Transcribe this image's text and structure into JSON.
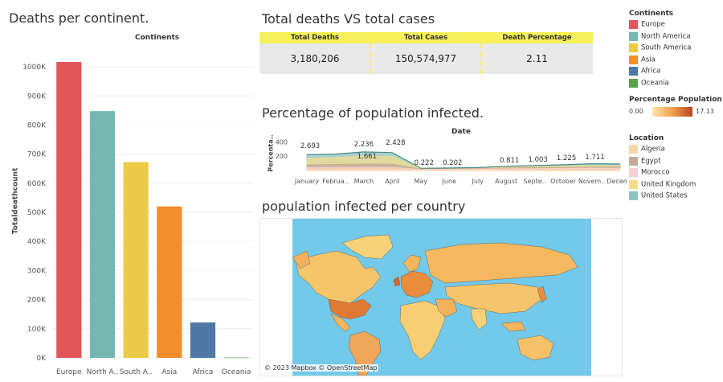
{
  "deaths_chart": {
    "title": "Deaths per continent.",
    "header": "Continents",
    "ylabel": "Totaldeathcount"
  },
  "kpi": {
    "title": "Total deaths VS total cases",
    "columns": [
      {
        "header": "Total Deaths",
        "value": "3,180,206"
      },
      {
        "header": "Total Cases",
        "value": "150,574,977"
      },
      {
        "header": "Death Percentage",
        "value": "2.11"
      }
    ]
  },
  "pct_chart": {
    "title": "Percentage of population infected.",
    "header": "Date",
    "ylabel": "Percenta.."
  },
  "map": {
    "title": "population infected per country",
    "attribution": "© 2023 Mapbox © OpenStreetMap"
  },
  "legends": {
    "continents_title": "Continents",
    "continents": [
      {
        "label": "Europe",
        "color": "#e15759"
      },
      {
        "label": "North America",
        "color": "#76b7b2"
      },
      {
        "label": "South America",
        "color": "#edc948"
      },
      {
        "label": "Asia",
        "color": "#f28e2b"
      },
      {
        "label": "Africa",
        "color": "#4e79a7"
      },
      {
        "label": "Oceania",
        "color": "#59a14f"
      }
    ],
    "pct_title": "Percentage Population In..",
    "pct_min": "0.00",
    "pct_max": "17.13",
    "location_title": "Location",
    "locations": [
      {
        "label": "Algeria",
        "color": "#f9d7a8"
      },
      {
        "label": "Egypt",
        "color": "#c1ab98"
      },
      {
        "label": "Morocco",
        "color": "#f7cfd6"
      },
      {
        "label": "United Kingdom",
        "color": "#f3dc8c"
      },
      {
        "label": "United States",
        "color": "#8fc3c1"
      }
    ]
  },
  "chart_data": [
    {
      "type": "bar",
      "title": "Deaths per continent.",
      "xlabel": "Continents",
      "ylabel": "Totaldeathcount",
      "categories": [
        "Europe",
        "North A..",
        "South A..",
        "Asia",
        "Africa",
        "Oceania"
      ],
      "values": [
        1016750,
        847942,
        672415,
        520286,
        121784,
        1046
      ],
      "colors": [
        "#e15759",
        "#76b7b2",
        "#edc948",
        "#f28e2b",
        "#4e79a7",
        "#59a14f"
      ],
      "ylim": [
        0,
        1050000
      ],
      "yticks": [
        0,
        100000,
        200000,
        300000,
        400000,
        500000,
        600000,
        700000,
        800000,
        900000,
        1000000
      ],
      "ytick_labels": [
        "0K",
        "100K",
        "200K",
        "300K",
        "400K",
        "500K",
        "600K",
        "700K",
        "800K",
        "900K",
        "1000K"
      ],
      "grid": true
    },
    {
      "type": "area",
      "title": "Percentage of population infected.",
      "xlabel": "Date",
      "ylabel": "Percenta..",
      "categories": [
        "January",
        "Februa..",
        "March",
        "April",
        "May",
        "June",
        "July",
        "August",
        "Septe..",
        "October",
        "Novem..",
        "Decem.."
      ],
      "ylim": [
        0,
        450
      ],
      "yticks": [
        200,
        400
      ],
      "series": [
        {
          "name": "United States",
          "color": "#8fc3c1",
          "values": [
            220,
            230,
            260,
            250,
            30,
            35,
            40,
            60,
            70,
            80,
            95,
            90
          ]
        },
        {
          "name": "United Kingdom",
          "color": "#f3dc8c",
          "values": [
            170,
            180,
            200,
            195,
            25,
            30,
            32,
            45,
            55,
            60,
            70,
            65
          ]
        },
        {
          "name": "Egypt",
          "color": "#c1ab98",
          "values": [
            80,
            85,
            90,
            88,
            20,
            25,
            28,
            35,
            40,
            45,
            50,
            48
          ]
        },
        {
          "name": "Morocco",
          "color": "#f7cfd6",
          "values": [
            40,
            42,
            45,
            44,
            15,
            18,
            20,
            25,
            28,
            30,
            32,
            30
          ]
        },
        {
          "name": "Algeria",
          "color": "#f9d7a8",
          "values": [
            20,
            22,
            24,
            23,
            10,
            12,
            13,
            15,
            17,
            18,
            19,
            18
          ]
        }
      ],
      "data_labels": [
        {
          "category": "January",
          "text": "2.693"
        },
        {
          "category": "March",
          "text": "2.236"
        },
        {
          "category": "March",
          "text": "1.661"
        },
        {
          "category": "April",
          "text": "2.428"
        },
        {
          "category": "May",
          "text": "0.222"
        },
        {
          "category": "June",
          "text": "0.202"
        },
        {
          "category": "August",
          "text": "0.811"
        },
        {
          "category": "Septe..",
          "text": "1.003"
        },
        {
          "category": "October",
          "text": "1.225"
        },
        {
          "category": "Novem..",
          "text": "1.711"
        }
      ]
    }
  ]
}
